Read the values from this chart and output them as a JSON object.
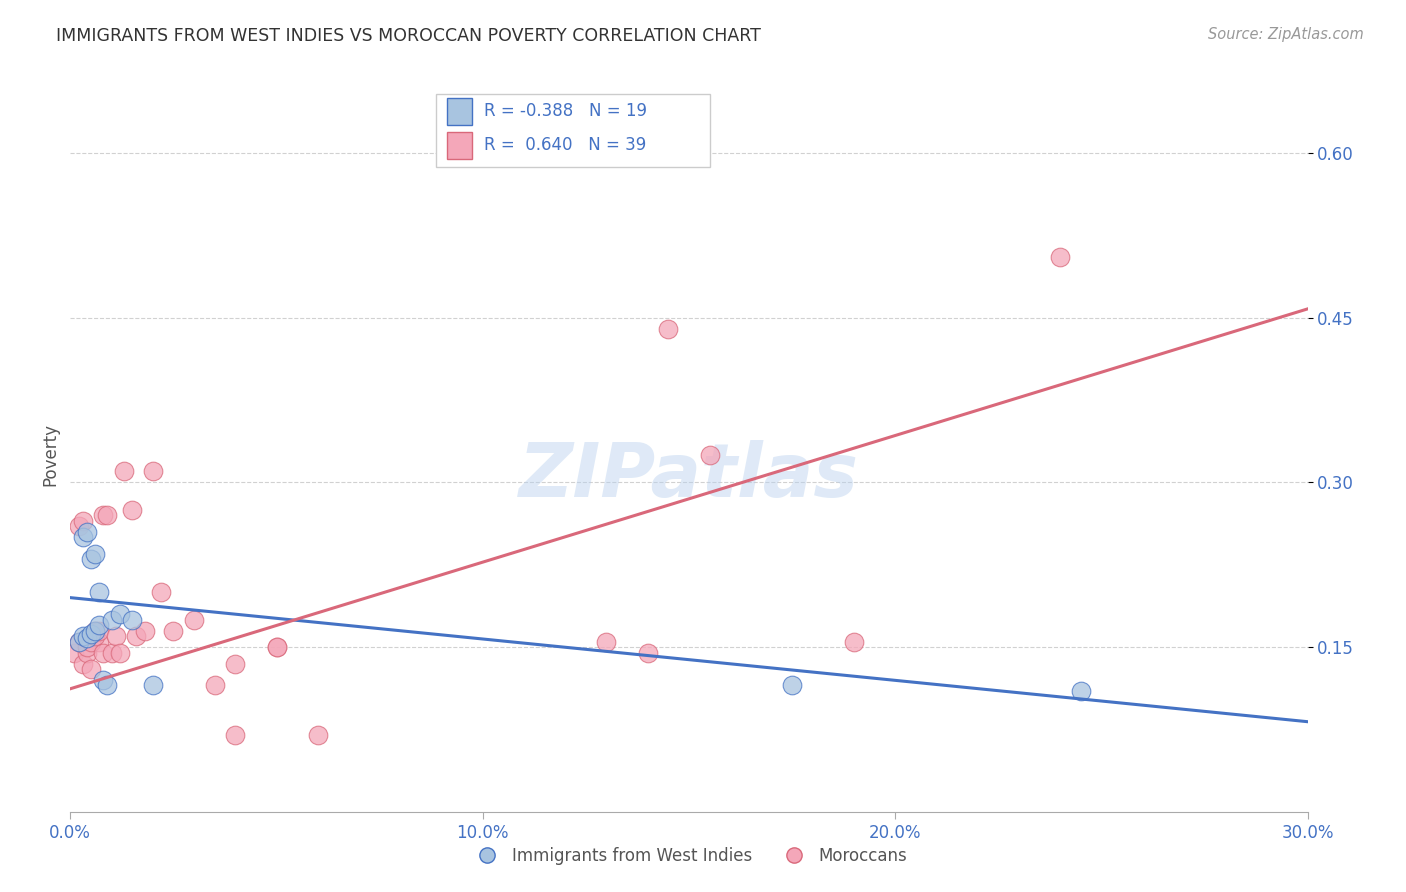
{
  "title": "IMMIGRANTS FROM WEST INDIES VS MOROCCAN POVERTY CORRELATION CHART",
  "source": "Source: ZipAtlas.com",
  "ylabel": "Poverty",
  "xlim": [
    0.0,
    0.3
  ],
  "ylim": [
    0.0,
    0.65
  ],
  "xtick_labels": [
    "0.0%",
    "10.0%",
    "20.0%",
    "30.0%"
  ],
  "xtick_vals": [
    0.0,
    0.1,
    0.2,
    0.3
  ],
  "ytick_labels": [
    "15.0%",
    "30.0%",
    "45.0%",
    "60.0%"
  ],
  "ytick_vals": [
    0.15,
    0.3,
    0.45,
    0.6
  ],
  "blue_color": "#a8c4e0",
  "blue_line_color": "#4472c4",
  "pink_color": "#f4a7b9",
  "pink_line_color": "#d9687a",
  "legend_R_blue": "R = -0.388",
  "legend_N_blue": "N = 19",
  "legend_R_pink": "R =  0.640",
  "legend_N_pink": "N = 39",
  "label_blue": "Immigrants from West Indies",
  "label_pink": "Moroccans",
  "watermark": "ZIPatlas",
  "blue_scatter_x": [
    0.002,
    0.003,
    0.004,
    0.005,
    0.006,
    0.007,
    0.003,
    0.004,
    0.005,
    0.006,
    0.007,
    0.008,
    0.009,
    0.01,
    0.012,
    0.015,
    0.02,
    0.175,
    0.245
  ],
  "blue_scatter_y": [
    0.155,
    0.16,
    0.158,
    0.162,
    0.165,
    0.17,
    0.25,
    0.255,
    0.23,
    0.235,
    0.2,
    0.12,
    0.115,
    0.175,
    0.18,
    0.175,
    0.115,
    0.115,
    0.11
  ],
  "pink_scatter_x": [
    0.001,
    0.002,
    0.003,
    0.004,
    0.005,
    0.006,
    0.007,
    0.008,
    0.002,
    0.003,
    0.004,
    0.005,
    0.006,
    0.007,
    0.008,
    0.009,
    0.01,
    0.011,
    0.012,
    0.013,
    0.015,
    0.016,
    0.018,
    0.02,
    0.022,
    0.025,
    0.03,
    0.035,
    0.04,
    0.05,
    0.13,
    0.14,
    0.155,
    0.19,
    0.24,
    0.145,
    0.04,
    0.05,
    0.06
  ],
  "pink_scatter_y": [
    0.145,
    0.155,
    0.135,
    0.145,
    0.13,
    0.165,
    0.155,
    0.27,
    0.26,
    0.265,
    0.15,
    0.155,
    0.16,
    0.165,
    0.145,
    0.27,
    0.145,
    0.16,
    0.145,
    0.31,
    0.275,
    0.16,
    0.165,
    0.31,
    0.2,
    0.165,
    0.175,
    0.115,
    0.07,
    0.15,
    0.155,
    0.145,
    0.325,
    0.155,
    0.505,
    0.44,
    0.135,
    0.15,
    0.07
  ],
  "blue_trend_x": [
    0.0,
    0.3
  ],
  "blue_trend_y": [
    0.195,
    0.082
  ],
  "pink_trend_x": [
    0.0,
    0.3
  ],
  "pink_trend_y": [
    0.112,
    0.458
  ]
}
